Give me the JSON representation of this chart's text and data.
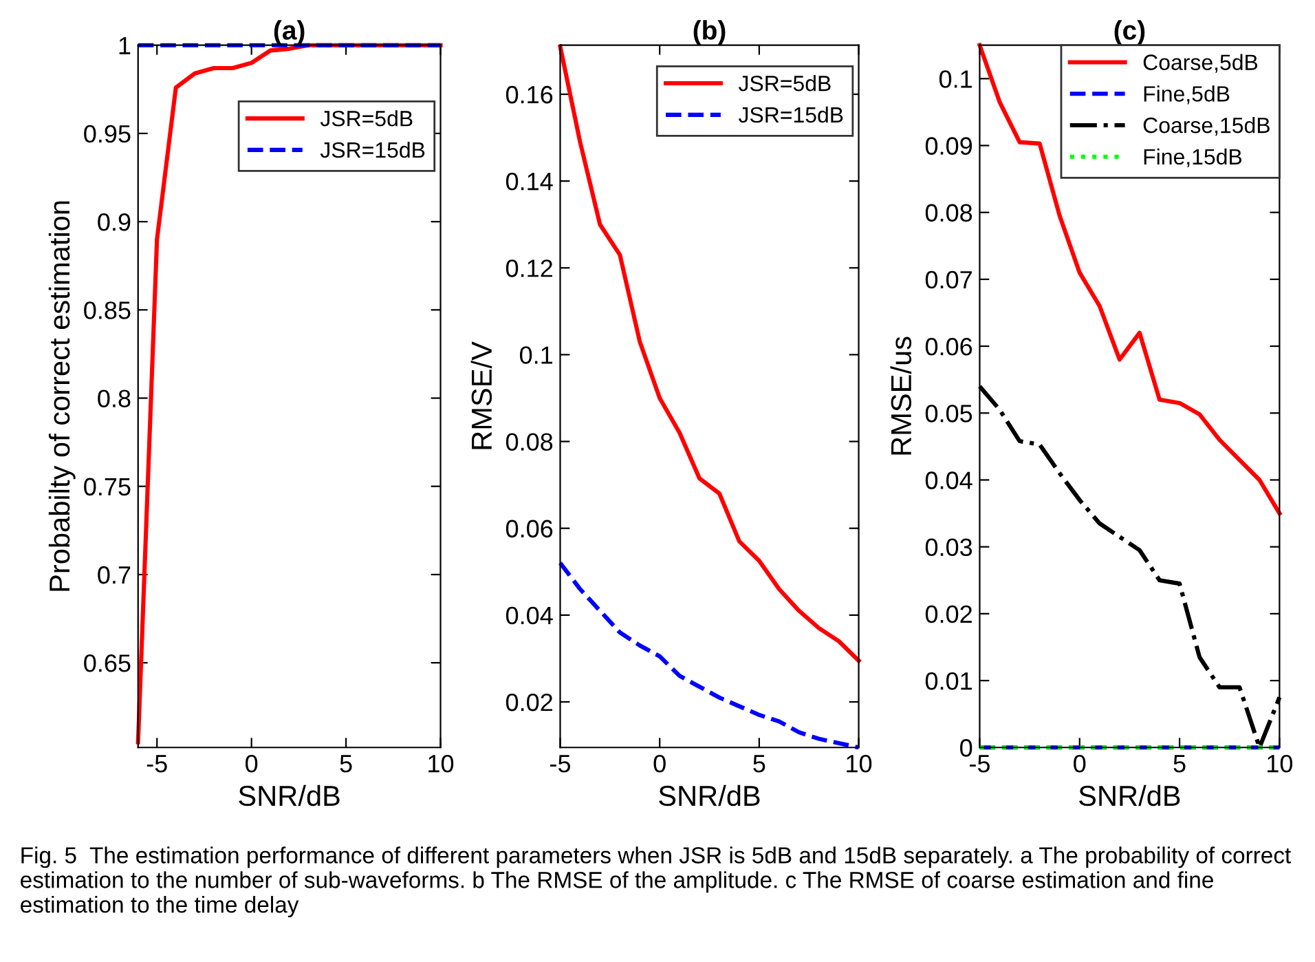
{
  "chart_data": [
    {
      "type": "line",
      "title": "(a)",
      "xlabel": "SNR/dB",
      "ylabel": "Probabilty of correct estimation",
      "x": [
        -6,
        -5,
        -4,
        -3,
        -2,
        -1,
        0,
        1,
        2,
        3,
        4,
        5,
        6,
        7,
        8,
        9,
        10
      ],
      "series": [
        {
          "name": "JSR=5dB",
          "color": "#ff0000",
          "line_style": "solid",
          "values": [
            0.605,
            0.89,
            0.976,
            0.984,
            0.987,
            0.987,
            0.99,
            0.997,
            0.998,
            1,
            1,
            1,
            1,
            1,
            1,
            1,
            1
          ]
        },
        {
          "name": "JSR=15dB",
          "color": "#0000ff",
          "line_style": "dashed",
          "values": [
            1,
            1,
            1,
            1,
            1,
            1,
            1,
            1,
            1,
            1,
            1,
            1,
            1,
            1,
            1,
            1,
            1
          ]
        }
      ],
      "xlim": [
        -6,
        10
      ],
      "ylim": [
        0.602,
        1
      ],
      "xticks": [
        -5,
        0,
        5,
        10
      ],
      "yticks": [
        0.65,
        0.7,
        0.75,
        0.8,
        0.85,
        0.9,
        0.95,
        1
      ],
      "grid": false,
      "legend": "top right",
      "marker": "none",
      "annotations": [
        "Fig. 5  The estimation performance of different parameters when JSR is 5dB and 15dB separately. a The probability of correct estimation to the number of sub-waveforms. b The RMSE of the amplitude. c The RMSE of coarse estimation and fine estimation to the time delay"
      ]
    },
    {
      "type": "line",
      "title": "(b)",
      "xlabel": "SNR/dB",
      "ylabel": "RMSE/V",
      "x": [
        -5,
        -4,
        -3,
        -2,
        -1,
        0,
        1,
        2,
        3,
        4,
        5,
        6,
        7,
        8,
        9,
        10
      ],
      "series": [
        {
          "name": "JSR=5dB",
          "color": "#ff0000",
          "line_style": "solid",
          "values": [
            0.171,
            0.149,
            0.13,
            0.123,
            0.103,
            0.09,
            0.082,
            0.0715,
            0.068,
            0.057,
            0.0525,
            0.046,
            0.041,
            0.037,
            0.034,
            0.0295
          ]
        },
        {
          "name": "JSR=15dB",
          "color": "#0000ff",
          "line_style": "dashed",
          "values": [
            0.052,
            0.046,
            0.041,
            0.036,
            0.033,
            0.0305,
            0.026,
            0.0235,
            0.021,
            0.019,
            0.017,
            0.0155,
            0.013,
            0.0115,
            0.0105,
            0.0095
          ]
        }
      ],
      "xlim": [
        -5,
        10
      ],
      "ylim": [
        0.0095,
        0.1713
      ],
      "xticks": [
        -5,
        0,
        5,
        10
      ],
      "yticks": [
        0.02,
        0.04,
        0.06,
        0.08,
        0.1,
        0.12,
        0.14,
        0.16
      ],
      "grid": false,
      "legend": "top right",
      "marker": "none"
    },
    {
      "type": "line",
      "title": "(c)",
      "xlabel": "SNR/dB",
      "ylabel": "RMSE/us",
      "x": [
        -5,
        -4,
        -3,
        -2,
        -1,
        0,
        1,
        2,
        3,
        4,
        5,
        6,
        7,
        8,
        9,
        10
      ],
      "series": [
        {
          "name": "Coarse,5dB",
          "color": "#ff0000",
          "line_style": "solid",
          "values": [
            0.105,
            0.0965,
            0.0905,
            0.0903,
            0.0795,
            0.071,
            0.066,
            0.058,
            0.062,
            0.052,
            0.0515,
            0.0498,
            0.046,
            0.043,
            0.04,
            0.035
          ]
        },
        {
          "name": "Fine,5dB",
          "color": "#0000ff",
          "line_style": "dashed",
          "values": [
            0,
            0,
            0,
            0,
            0,
            0,
            0,
            0,
            0,
            0,
            0,
            0,
            0,
            0,
            0,
            0
          ]
        },
        {
          "name": "Coarse,15dB",
          "color": "#000000",
          "line_style": "dashdot",
          "values": [
            0.054,
            0.0505,
            0.0458,
            0.0453,
            0.041,
            0.037,
            0.0335,
            0.0315,
            0.0295,
            0.025,
            0.0245,
            0.0135,
            0.009,
            0.009,
            0,
            0.0075
          ]
        },
        {
          "name": "Fine,15dB",
          "color": "#00ff00",
          "line_style": "dotted",
          "values": [
            0,
            0,
            0,
            0,
            0,
            0,
            0,
            0,
            0,
            0,
            0,
            0,
            0,
            0,
            0,
            0
          ]
        }
      ],
      "xlim": [
        -5,
        10
      ],
      "ylim": [
        0,
        0.105
      ],
      "xticks": [
        -5,
        0,
        5,
        10
      ],
      "yticks": [
        0,
        0.01,
        0.02,
        0.03,
        0.04,
        0.05,
        0.06,
        0.07,
        0.08,
        0.09,
        0.1
      ],
      "grid": false,
      "legend": "top right",
      "marker": "none"
    }
  ]
}
